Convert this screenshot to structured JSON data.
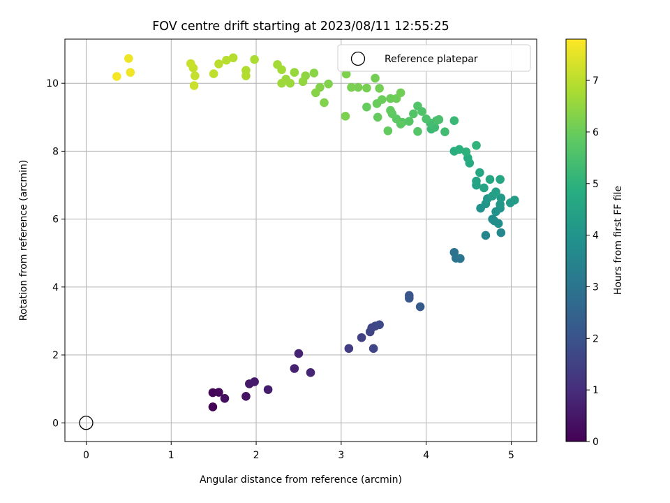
{
  "chart_data": {
    "type": "scatter",
    "title": "FOV centre drift starting at 2023/08/11 12:55:25",
    "xlabel": "Angular distance from reference (arcmin)",
    "ylabel": "Rotation from reference (arcmin)",
    "xlim": [
      -0.25,
      5.3
    ],
    "ylim": [
      -0.55,
      11.3
    ],
    "xticks": [
      "0",
      "1",
      "2",
      "3",
      "4",
      "5"
    ],
    "yticks": [
      "0",
      "2",
      "4",
      "6",
      "8",
      "10"
    ],
    "grid": true,
    "legend": {
      "placement": "top-right",
      "entries": [
        "Reference platepar"
      ]
    },
    "reference_point": {
      "x": 0,
      "y": 0,
      "label": "Reference platepar"
    },
    "colorbar": {
      "label": "Hours from first FF file",
      "range": [
        0,
        7.8
      ],
      "ticks": [
        "0",
        "1",
        "2",
        "3",
        "4",
        "5",
        "6",
        "7"
      ],
      "colormap": "viridis"
    },
    "points": [
      {
        "x": 1.49,
        "y": 0.47,
        "h": 0.05
      },
      {
        "x": 1.49,
        "y": 0.89,
        "h": 0.1
      },
      {
        "x": 1.56,
        "y": 0.9,
        "h": 0.2
      },
      {
        "x": 1.63,
        "y": 0.72,
        "h": 0.3
      },
      {
        "x": 1.88,
        "y": 0.78,
        "h": 0.4
      },
      {
        "x": 1.92,
        "y": 1.15,
        "h": 0.5
      },
      {
        "x": 1.98,
        "y": 1.21,
        "h": 0.55
      },
      {
        "x": 2.14,
        "y": 0.98,
        "h": 0.6
      },
      {
        "x": 2.45,
        "y": 1.6,
        "h": 0.7
      },
      {
        "x": 2.5,
        "y": 2.04,
        "h": 0.75
      },
      {
        "x": 2.64,
        "y": 1.48,
        "h": 0.8
      },
      {
        "x": 3.09,
        "y": 2.19,
        "h": 1.4
      },
      {
        "x": 3.24,
        "y": 2.51,
        "h": 1.5
      },
      {
        "x": 3.34,
        "y": 2.68,
        "h": 1.55
      },
      {
        "x": 3.36,
        "y": 2.8,
        "h": 1.6
      },
      {
        "x": 3.38,
        "y": 2.19,
        "h": 1.62
      },
      {
        "x": 3.4,
        "y": 2.85,
        "h": 1.65
      },
      {
        "x": 3.45,
        "y": 2.89,
        "h": 1.7
      },
      {
        "x": 3.8,
        "y": 3.75,
        "h": 2.0
      },
      {
        "x": 3.8,
        "y": 3.67,
        "h": 2.1
      },
      {
        "x": 3.93,
        "y": 3.42,
        "h": 2.2
      },
      {
        "x": 4.33,
        "y": 5.02,
        "h": 2.9
      },
      {
        "x": 4.35,
        "y": 4.85,
        "h": 3.0
      },
      {
        "x": 4.4,
        "y": 4.84,
        "h": 3.05
      },
      {
        "x": 4.7,
        "y": 5.52,
        "h": 3.5
      },
      {
        "x": 4.88,
        "y": 5.6,
        "h": 3.6
      },
      {
        "x": 4.78,
        "y": 6.0,
        "h": 3.7
      },
      {
        "x": 4.8,
        "y": 5.95,
        "h": 3.75
      },
      {
        "x": 4.85,
        "y": 5.87,
        "h": 3.8
      },
      {
        "x": 4.64,
        "y": 6.32,
        "h": 3.9
      },
      {
        "x": 4.82,
        "y": 6.22,
        "h": 3.95
      },
      {
        "x": 4.87,
        "y": 6.32,
        "h": 4.0
      },
      {
        "x": 4.7,
        "y": 6.45,
        "h": 4.05
      },
      {
        "x": 4.72,
        "y": 6.6,
        "h": 4.1
      },
      {
        "x": 4.87,
        "y": 6.43,
        "h": 4.15
      },
      {
        "x": 4.88,
        "y": 6.62,
        "h": 4.2
      },
      {
        "x": 4.99,
        "y": 6.48,
        "h": 4.25
      },
      {
        "x": 5.04,
        "y": 6.56,
        "h": 4.3
      },
      {
        "x": 4.78,
        "y": 6.68,
        "h": 4.35
      },
      {
        "x": 4.82,
        "y": 6.8,
        "h": 4.4
      },
      {
        "x": 4.59,
        "y": 7.0,
        "h": 4.45
      },
      {
        "x": 4.59,
        "y": 7.12,
        "h": 4.5
      },
      {
        "x": 4.68,
        "y": 6.92,
        "h": 4.55
      },
      {
        "x": 4.75,
        "y": 7.17,
        "h": 4.6
      },
      {
        "x": 4.87,
        "y": 7.17,
        "h": 4.62
      },
      {
        "x": 4.63,
        "y": 7.37,
        "h": 4.65
      },
      {
        "x": 4.51,
        "y": 7.65,
        "h": 4.75
      },
      {
        "x": 4.49,
        "y": 7.8,
        "h": 4.8
      },
      {
        "x": 4.33,
        "y": 8.0,
        "h": 4.9
      },
      {
        "x": 4.39,
        "y": 8.05,
        "h": 4.95
      },
      {
        "x": 4.47,
        "y": 7.98,
        "h": 5.0
      },
      {
        "x": 4.59,
        "y": 8.17,
        "h": 5.05
      },
      {
        "x": 4.33,
        "y": 8.9,
        "h": 5.2
      },
      {
        "x": 4.06,
        "y": 8.65,
        "h": 5.25
      },
      {
        "x": 4.1,
        "y": 8.7,
        "h": 5.3
      },
      {
        "x": 4.22,
        "y": 8.57,
        "h": 5.35
      },
      {
        "x": 4.05,
        "y": 8.83,
        "h": 5.4
      },
      {
        "x": 4.12,
        "y": 8.9,
        "h": 5.45
      },
      {
        "x": 4.15,
        "y": 8.93,
        "h": 5.5
      },
      {
        "x": 4.0,
        "y": 8.95,
        "h": 5.55
      },
      {
        "x": 3.95,
        "y": 9.17,
        "h": 5.6
      },
      {
        "x": 3.9,
        "y": 9.33,
        "h": 5.62
      },
      {
        "x": 3.85,
        "y": 9.1,
        "h": 5.65
      },
      {
        "x": 3.9,
        "y": 8.58,
        "h": 5.7
      },
      {
        "x": 3.8,
        "y": 8.88,
        "h": 5.72
      },
      {
        "x": 3.72,
        "y": 8.85,
        "h": 5.75
      },
      {
        "x": 3.7,
        "y": 8.8,
        "h": 5.8
      },
      {
        "x": 3.65,
        "y": 8.95,
        "h": 5.82
      },
      {
        "x": 3.6,
        "y": 9.1,
        "h": 5.85
      },
      {
        "x": 3.58,
        "y": 9.2,
        "h": 5.88
      },
      {
        "x": 3.55,
        "y": 8.6,
        "h": 5.9
      },
      {
        "x": 3.43,
        "y": 9.0,
        "h": 5.92
      },
      {
        "x": 3.3,
        "y": 9.3,
        "h": 5.95
      },
      {
        "x": 3.42,
        "y": 9.4,
        "h": 5.97
      },
      {
        "x": 3.48,
        "y": 9.52,
        "h": 6.0
      },
      {
        "x": 3.58,
        "y": 9.55,
        "h": 6.02
      },
      {
        "x": 3.65,
        "y": 9.55,
        "h": 6.05
      },
      {
        "x": 3.7,
        "y": 9.72,
        "h": 6.08
      },
      {
        "x": 3.45,
        "y": 9.85,
        "h": 6.1
      },
      {
        "x": 3.4,
        "y": 10.15,
        "h": 6.12
      },
      {
        "x": 3.3,
        "y": 9.86,
        "h": 6.15
      },
      {
        "x": 3.2,
        "y": 9.88,
        "h": 6.18
      },
      {
        "x": 3.12,
        "y": 9.88,
        "h": 6.2
      },
      {
        "x": 3.05,
        "y": 9.03,
        "h": 6.22
      },
      {
        "x": 3.06,
        "y": 10.27,
        "h": 6.25
      },
      {
        "x": 2.85,
        "y": 9.98,
        "h": 6.28
      },
      {
        "x": 2.8,
        "y": 9.43,
        "h": 6.3
      },
      {
        "x": 2.75,
        "y": 9.88,
        "h": 6.32
      },
      {
        "x": 2.7,
        "y": 9.72,
        "h": 6.35
      },
      {
        "x": 2.68,
        "y": 10.3,
        "h": 6.4
      },
      {
        "x": 2.58,
        "y": 10.22,
        "h": 6.45
      },
      {
        "x": 2.55,
        "y": 10.05,
        "h": 6.5
      },
      {
        "x": 2.45,
        "y": 10.32,
        "h": 6.55
      },
      {
        "x": 2.4,
        "y": 10.0,
        "h": 6.6
      },
      {
        "x": 2.35,
        "y": 10.12,
        "h": 6.62
      },
      {
        "x": 2.3,
        "y": 10.0,
        "h": 6.65
      },
      {
        "x": 2.3,
        "y": 10.4,
        "h": 6.7
      },
      {
        "x": 2.25,
        "y": 10.55,
        "h": 6.72
      },
      {
        "x": 1.98,
        "y": 10.7,
        "h": 6.8
      },
      {
        "x": 1.88,
        "y": 10.38,
        "h": 6.85
      },
      {
        "x": 1.88,
        "y": 10.22,
        "h": 6.88
      },
      {
        "x": 1.73,
        "y": 10.75,
        "h": 6.9
      },
      {
        "x": 1.65,
        "y": 10.68,
        "h": 6.95
      },
      {
        "x": 1.56,
        "y": 10.57,
        "h": 7.0
      },
      {
        "x": 1.5,
        "y": 10.28,
        "h": 7.05
      },
      {
        "x": 1.28,
        "y": 10.22,
        "h": 7.1
      },
      {
        "x": 1.26,
        "y": 10.45,
        "h": 7.12
      },
      {
        "x": 1.23,
        "y": 10.58,
        "h": 7.15
      },
      {
        "x": 1.27,
        "y": 9.93,
        "h": 7.18
      },
      {
        "x": 0.5,
        "y": 10.73,
        "h": 7.6
      },
      {
        "x": 0.52,
        "y": 10.32,
        "h": 7.65
      },
      {
        "x": 0.36,
        "y": 10.2,
        "h": 7.7
      }
    ]
  }
}
